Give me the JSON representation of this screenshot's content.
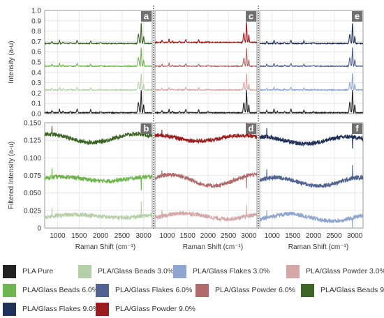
{
  "chart_data": {
    "type": "line",
    "xlabel": "Raman Shift (cm⁻¹)",
    "x_ticks": [
      1000,
      1500,
      2000,
      2500,
      3000
    ],
    "xlim": [
      700,
      3200
    ],
    "top_ylabel": "Intensity (a-u)",
    "top_ylim": [
      0,
      1.0
    ],
    "top_yticks": [
      "0.0",
      "0.1",
      "0.2",
      "0.3",
      "0.4",
      "0.5",
      "0.6",
      "0.7",
      "0.8",
      "0.9",
      "1.0"
    ],
    "bottom_ylabel": "Filtered Intensity (a-u)",
    "bottom_ylim": [
      0,
      0.15
    ],
    "bottom_yticks": [
      "0",
      "0.025",
      "0.050",
      "0.075",
      "0.100",
      "0.125",
      "0.150"
    ],
    "panels": [
      {
        "letter": "a",
        "row": 0,
        "col": 0,
        "series": [
          {
            "name": "PLA Pure",
            "color": "#222222",
            "baseline": 0.01,
            "height": 0.22
          },
          {
            "name": "PLA/Glass Beads 3.0%",
            "color": "#b5d0a8",
            "baseline": 0.23,
            "height": 0.16
          },
          {
            "name": "PLA/Glass Beads 6.0%",
            "color": "#6db54c",
            "baseline": 0.46,
            "height": 0.18
          },
          {
            "name": "PLA/Glass Beads 9.0%",
            "color": "#3c6425",
            "baseline": 0.68,
            "height": 0.2
          }
        ]
      },
      {
        "letter": "c",
        "row": 0,
        "col": 1,
        "series": [
          {
            "name": "PLA Pure",
            "color": "#222222",
            "baseline": 0.01,
            "height": 0.22
          },
          {
            "name": "PLA/Glass Powder 3.0%",
            "color": "#d5a8a8",
            "baseline": 0.23,
            "height": 0.16
          },
          {
            "name": "PLA/Glass Powder 6.0%",
            "color": "#b06a6a",
            "baseline": 0.46,
            "height": 0.18
          },
          {
            "name": "PLA/Glass Powder 9.0%",
            "color": "#9b1c1c",
            "baseline": 0.69,
            "height": 0.2
          }
        ]
      },
      {
        "letter": "e",
        "row": 0,
        "col": 2,
        "series": [
          {
            "name": "PLA Pure",
            "color": "#222222",
            "baseline": 0.01,
            "height": 0.22
          },
          {
            "name": "PLA/Glass Flakes 3.0%",
            "color": "#8fa6d0",
            "baseline": 0.23,
            "height": 0.16
          },
          {
            "name": "PLA/Glass Flakes 6.0%",
            "color": "#50628f",
            "baseline": 0.46,
            "height": 0.18
          },
          {
            "name": "PLA/Glass Flakes 9.0%",
            "color": "#1f3158",
            "baseline": 0.68,
            "height": 0.2
          }
        ]
      },
      {
        "letter": "b",
        "row": 1,
        "col": 0,
        "series": [
          {
            "name": "PLA/Glass Beads 3.0%",
            "color": "#b5d0a8",
            "baseline": 0.017,
            "wave": 0.002
          },
          {
            "name": "PLA/Glass Beads 6.0%",
            "color": "#6db54c",
            "baseline": 0.07,
            "wave": 0.003
          },
          {
            "name": "PLA/Glass Beads 9.0%",
            "color": "#3c6425",
            "baseline": 0.128,
            "wave": 0.006
          }
        ]
      },
      {
        "letter": "d",
        "row": 1,
        "col": 1,
        "series": [
          {
            "name": "PLA/Glass Powder 3.0%",
            "color": "#d5a8a8",
            "baseline": 0.017,
            "wave": 0.004
          },
          {
            "name": "PLA/Glass Powder 6.0%",
            "color": "#b06a6a",
            "baseline": 0.068,
            "wave": 0.008
          },
          {
            "name": "PLA/Glass Powder 9.0%",
            "color": "#9b1c1c",
            "baseline": 0.128,
            "wave": 0.004
          }
        ]
      },
      {
        "letter": "f",
        "row": 1,
        "col": 2,
        "series": [
          {
            "name": "PLA/Glass Flakes 3.0%",
            "color": "#8fa6d0",
            "baseline": 0.015,
            "wave": 0.005
          },
          {
            "name": "PLA/Glass Flakes 6.0%",
            "color": "#50628f",
            "baseline": 0.066,
            "wave": 0.006
          },
          {
            "name": "PLA/Glass Flakes 9.0%",
            "color": "#1f3158",
            "baseline": 0.125,
            "wave": 0.005
          }
        ]
      }
    ],
    "legend": [
      {
        "label": "PLA Pure",
        "color": "#222222"
      },
      {
        "label": "PLA/Glass Beads 3.0%",
        "color": "#b5d0a8"
      },
      {
        "label": "PLA/Glass Flakes 3.0%",
        "color": "#8fa6d0"
      },
      {
        "label": "PLA/Glass Powder 3.0%",
        "color": "#d5a8a8"
      },
      {
        "label": "PLA/Glass Beads 6.0%",
        "color": "#6db54c"
      },
      {
        "label": "PLA/Glass Flakes 6.0%",
        "color": "#50628f"
      },
      {
        "label": "PLA/Glass Powder 6.0%",
        "color": "#b06a6a"
      },
      {
        "label": "PLA/Glass Beads 9.0%",
        "color": "#3c6425"
      },
      {
        "label": "PLA/Glass Flakes 9.0%",
        "color": "#1f3158"
      },
      {
        "label": "PLA/Glass Powder 9.0%",
        "color": "#9b1c1c"
      }
    ],
    "panel_label_bg": "#707070",
    "grid": true,
    "grid_color": "#e4e4e4",
    "frame_color": "#9a9a9a",
    "separator": "dotted"
  }
}
